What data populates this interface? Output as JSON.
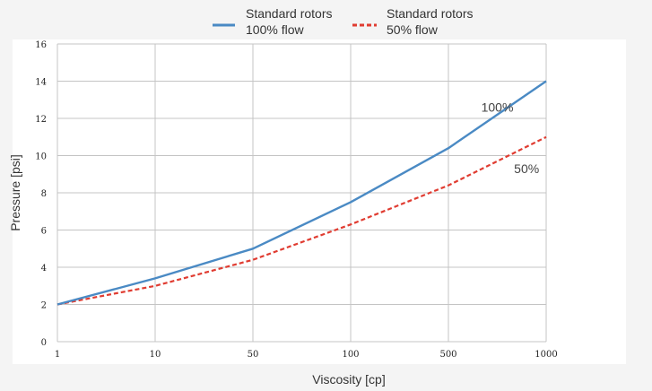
{
  "chart_data": {
    "type": "line",
    "title": "",
    "xlabel": "Viscosity [cp]",
    "ylabel": "Pressure [psi]",
    "categories": [
      "1",
      "10",
      "50",
      "100",
      "500",
      "1000"
    ],
    "ylim": [
      0,
      16
    ],
    "yticks": [
      "0",
      "2",
      "4",
      "6",
      "8",
      "10",
      "12",
      "14",
      "16"
    ],
    "grid": true,
    "legend_position": "top-center",
    "series": [
      {
        "name_line1": "Standard rotors",
        "name_line2": "100% flow",
        "values": [
          2.0,
          3.4,
          5.0,
          7.5,
          10.4,
          14.0
        ],
        "color": "#4a8ac4",
        "style": "solid"
      },
      {
        "name_line1": "Standard rotors",
        "name_line2": "50% flow",
        "values": [
          2.0,
          3.0,
          4.4,
          6.3,
          8.4,
          11.0
        ],
        "color": "#e03c31",
        "style": "dashed"
      }
    ],
    "annotations": [
      {
        "text": "100%",
        "category_index": 4.5,
        "y": 12.6
      },
      {
        "text": "50%",
        "category_index": 4.8,
        "y": 9.3
      }
    ]
  }
}
